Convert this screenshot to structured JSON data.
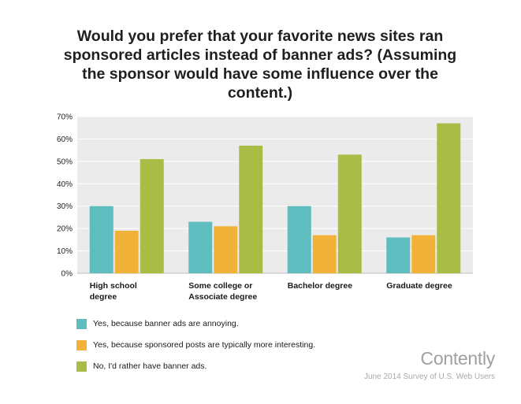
{
  "chart_data": {
    "type": "bar",
    "title": "Would you prefer that your favorite news sites ran sponsored articles instead of banner ads? (Assuming the sponsor would have some influence over the content.)",
    "categories": [
      [
        "High school",
        "degree"
      ],
      [
        "Some college or",
        "Associate degree"
      ],
      [
        "Bachelor degree"
      ],
      [
        "Graduate degree"
      ]
    ],
    "series": [
      {
        "name": "Yes, because banner ads are annoying.",
        "color": "#5fbcbf",
        "values": [
          30,
          23,
          30,
          16
        ]
      },
      {
        "name": "Yes, because sponsored posts are typically more interesting.",
        "color": "#f2b23a",
        "values": [
          19,
          21,
          17,
          17
        ]
      },
      {
        "name": "No, I'd rather have banner ads.",
        "color": "#a9bd46",
        "values": [
          51,
          57,
          53,
          67
        ]
      }
    ],
    "ylim": [
      0,
      70
    ],
    "yticks": [
      "0%",
      "10%",
      "20%",
      "30%",
      "40%",
      "50%",
      "60%",
      "70%"
    ],
    "grid": true,
    "legend_position": "bottom-left"
  },
  "branding": {
    "logo": "Contently",
    "source": "June 2014 Survey of U.S. Web Users"
  }
}
